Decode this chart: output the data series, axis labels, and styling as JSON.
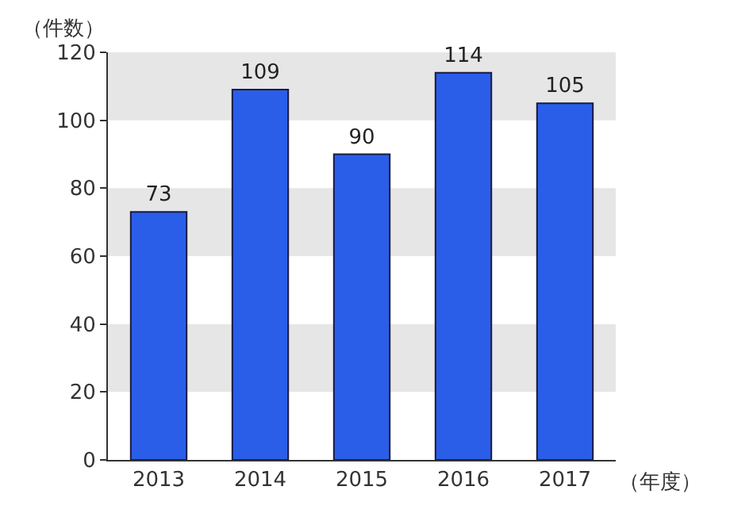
{
  "chart_data": {
    "type": "bar",
    "ylabel": "（件数）",
    "xlabel": "（年度）",
    "categories": [
      "2013",
      "2014",
      "2015",
      "2016",
      "2017"
    ],
    "values": [
      73,
      109,
      90,
      114,
      105
    ],
    "color": "#2a5ee8",
    "ylim": [
      0,
      120
    ],
    "yticks": [
      0,
      20,
      40,
      60,
      80,
      100,
      120
    ],
    "bands": [
      {
        "axis": "y",
        "from": 20,
        "to": 40,
        "color": "#e6e6e6"
      },
      {
        "axis": "y",
        "from": 60,
        "to": 80,
        "color": "#e6e6e6"
      },
      {
        "axis": "y",
        "from": 100,
        "to": 120,
        "color": "#e6e6e6"
      }
    ],
    "data_labels": true
  }
}
